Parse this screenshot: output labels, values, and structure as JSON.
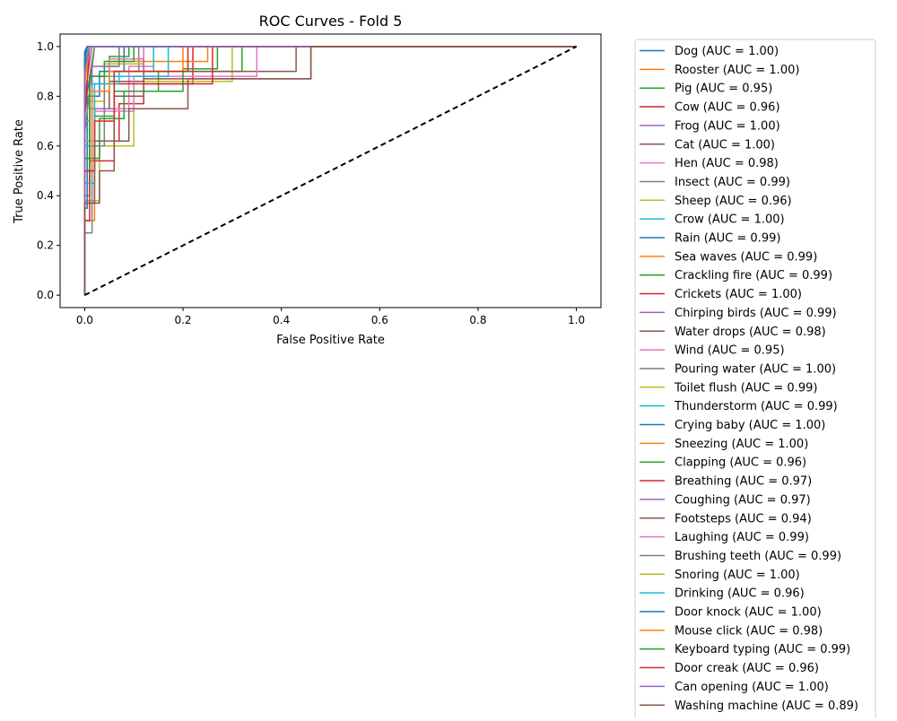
{
  "chart_data": {
    "type": "line",
    "title": "ROC Curves - Fold 5",
    "xlabel": "False Positive Rate",
    "ylabel": "True Positive Rate",
    "xlim": [
      -0.05,
      1.05
    ],
    "ylim": [
      -0.05,
      1.05
    ],
    "xticks": [
      "0.0",
      "0.2",
      "0.4",
      "0.6",
      "0.8",
      "1.0"
    ],
    "yticks": [
      "0.0",
      "0.2",
      "0.4",
      "0.6",
      "0.8",
      "1.0"
    ],
    "grid": false,
    "legend_position": "outside-right",
    "baseline": {
      "x": [
        0,
        1
      ],
      "y": [
        0,
        1
      ],
      "color": "#000000",
      "style": "dashed"
    },
    "palette": [
      "#1f77b4",
      "#ff7f0e",
      "#2ca02c",
      "#d62728",
      "#9467bd",
      "#8c564b",
      "#e377c2",
      "#7f7f7f",
      "#bcbd22",
      "#17becf"
    ],
    "series": [
      {
        "name": "Dog (AUC = 1.00)",
        "x": [
          0,
          0,
          0.005,
          1
        ],
        "y": [
          0,
          0.9,
          1,
          1
        ]
      },
      {
        "name": "Rooster (AUC = 1.00)",
        "x": [
          0,
          0,
          0.01,
          1
        ],
        "y": [
          0,
          0.85,
          1,
          1
        ]
      },
      {
        "name": "Pig (AUC = 0.95)",
        "x": [
          0,
          0,
          0.02,
          0.02,
          0.06,
          0.06,
          0.15,
          0.15,
          0.32,
          0.32,
          1
        ],
        "y": [
          0,
          0.55,
          0.55,
          0.72,
          0.72,
          0.82,
          0.82,
          0.9,
          0.9,
          1,
          1
        ]
      },
      {
        "name": "Cow (AUC = 0.96)",
        "x": [
          0,
          0,
          0.03,
          0.03,
          0.07,
          0.07,
          0.12,
          0.12,
          0.22,
          0.22,
          1
        ],
        "y": [
          0,
          0.55,
          0.55,
          0.62,
          0.62,
          0.77,
          0.77,
          0.85,
          0.85,
          1,
          1
        ]
      },
      {
        "name": "Frog (AUC = 1.00)",
        "x": [
          0,
          0,
          0.015,
          1
        ],
        "y": [
          0,
          0.8,
          1,
          1
        ]
      },
      {
        "name": "Cat (AUC = 1.00)",
        "x": [
          0,
          0,
          0.02,
          1
        ],
        "y": [
          0,
          0.75,
          1,
          1
        ]
      },
      {
        "name": "Hen (AUC = 0.98)",
        "x": [
          0,
          0,
          0.02,
          0.02,
          0.09,
          0.09,
          0.14,
          0.14,
          1
        ],
        "y": [
          0,
          0.6,
          0.6,
          0.75,
          0.75,
          0.92,
          0.92,
          1,
          1
        ]
      },
      {
        "name": "Insect (AUC = 0.99)",
        "x": [
          0,
          0,
          0.01,
          0.01,
          0.04,
          0.04,
          0.11,
          0.11,
          1
        ],
        "y": [
          0,
          0.4,
          0.4,
          0.75,
          0.75,
          0.9,
          0.9,
          1,
          1
        ]
      },
      {
        "name": "Sheep (AUC = 0.96)",
        "x": [
          0,
          0,
          0.03,
          0.03,
          0.1,
          0.1,
          0.3,
          0.3,
          1
        ],
        "y": [
          0,
          0.38,
          0.38,
          0.6,
          0.6,
          0.86,
          0.86,
          1,
          1
        ]
      },
      {
        "name": "Crow (AUC = 1.00)",
        "x": [
          0,
          0,
          0.01,
          1
        ],
        "y": [
          0,
          0.95,
          1,
          1
        ]
      },
      {
        "name": "Rain (AUC = 0.99)",
        "x": [
          0,
          0,
          0.005,
          0.005,
          0.03,
          0.03,
          0.08,
          0.08,
          1
        ],
        "y": [
          0,
          0.35,
          0.35,
          0.8,
          0.8,
          0.9,
          0.9,
          1,
          1
        ]
      },
      {
        "name": "Sea waves (AUC = 0.99)",
        "x": [
          0,
          0,
          0.02,
          0.02,
          0.05,
          0.05,
          0.25,
          0.25,
          1
        ],
        "y": [
          0,
          0.3,
          0.3,
          0.82,
          0.82,
          0.94,
          0.94,
          1,
          1
        ]
      },
      {
        "name": "Crackling fire (AUC = 0.99)",
        "x": [
          0,
          0,
          0.01,
          0.01,
          0.05,
          0.05,
          0.09,
          0.09,
          1
        ],
        "y": [
          0,
          0.45,
          0.45,
          0.88,
          0.88,
          0.96,
          0.96,
          1,
          1
        ]
      },
      {
        "name": "Crickets (AUC = 1.00)",
        "x": [
          0,
          0,
          0.01,
          1
        ],
        "y": [
          0,
          0.7,
          1,
          1
        ]
      },
      {
        "name": "Chirping birds (AUC = 0.99)",
        "x": [
          0,
          0,
          0.015,
          0.015,
          0.07,
          0.07,
          1
        ],
        "y": [
          0,
          0.55,
          0.55,
          0.92,
          0.92,
          1,
          1
        ]
      },
      {
        "name": "Water drops (AUC = 0.98)",
        "x": [
          0,
          0,
          0.02,
          0.02,
          0.05,
          0.05,
          0.12,
          0.12,
          0.43,
          0.43,
          1
        ],
        "y": [
          0,
          0.5,
          0.5,
          0.75,
          0.75,
          0.86,
          0.86,
          0.9,
          0.9,
          1,
          1
        ]
      },
      {
        "name": "Wind (AUC = 0.95)",
        "x": [
          0,
          0,
          0.02,
          0.02,
          0.1,
          0.1,
          0.35,
          0.35,
          1
        ],
        "y": [
          0,
          0.62,
          0.62,
          0.74,
          0.74,
          0.88,
          0.88,
          1,
          1
        ]
      },
      {
        "name": "Pouring water (AUC = 1.00)",
        "x": [
          0,
          0,
          0.02,
          1
        ],
        "y": [
          0,
          0.65,
          1,
          1
        ]
      },
      {
        "name": "Toilet flush (AUC = 0.99)",
        "x": [
          0,
          0,
          0.01,
          0.01,
          0.04,
          0.04,
          0.12,
          0.12,
          1
        ],
        "y": [
          0,
          0.5,
          0.5,
          0.78,
          0.78,
          0.93,
          0.93,
          1,
          1
        ]
      },
      {
        "name": "Thunderstorm (AUC = 0.99)",
        "x": [
          0,
          0,
          0.01,
          0.01,
          0.05,
          0.05,
          0.17,
          0.17,
          1
        ],
        "y": [
          0,
          0.6,
          0.6,
          0.85,
          0.85,
          0.88,
          0.88,
          1,
          1
        ]
      },
      {
        "name": "Crying baby (AUC = 1.00)",
        "x": [
          0,
          0,
          0.005,
          1
        ],
        "y": [
          0,
          0.98,
          1,
          1
        ]
      },
      {
        "name": "Sneezing (AUC = 1.00)",
        "x": [
          0,
          0,
          0.01,
          1
        ],
        "y": [
          0,
          0.85,
          1,
          1
        ]
      },
      {
        "name": "Clapping (AUC = 0.96)",
        "x": [
          0,
          0,
          0.03,
          0.03,
          0.08,
          0.08,
          0.2,
          0.2,
          0.27,
          0.27,
          1
        ],
        "y": [
          0,
          0.55,
          0.55,
          0.71,
          0.71,
          0.82,
          0.82,
          0.91,
          0.91,
          1,
          1
        ]
      },
      {
        "name": "Breathing (AUC = 0.97)",
        "x": [
          0,
          0,
          0.01,
          0.01,
          0.06,
          0.06,
          0.26,
          0.26,
          1
        ],
        "y": [
          0,
          0.3,
          0.3,
          0.54,
          0.54,
          0.85,
          0.85,
          1,
          1
        ]
      },
      {
        "name": "Coughing (AUC = 0.97)",
        "x": [
          0,
          0,
          0.02,
          0.02,
          0.06,
          0.06,
          0.12,
          0.12,
          1
        ],
        "y": [
          0,
          0.5,
          0.5,
          0.75,
          0.75,
          0.9,
          0.9,
          1,
          1
        ]
      },
      {
        "name": "Footsteps (AUC = 0.94)",
        "x": [
          0,
          0,
          0.03,
          0.03,
          0.06,
          0.06,
          0.12,
          0.12,
          0.46,
          0.46,
          1
        ],
        "y": [
          0,
          0.37,
          0.37,
          0.5,
          0.5,
          0.8,
          0.8,
          0.87,
          0.87,
          1,
          1
        ]
      },
      {
        "name": "Laughing (AUC = 0.99)",
        "x": [
          0,
          0,
          0.01,
          0.01,
          0.05,
          0.05,
          0.12,
          0.12,
          1
        ],
        "y": [
          0,
          0.7,
          0.7,
          0.82,
          0.82,
          0.95,
          0.95,
          1,
          1
        ]
      },
      {
        "name": "Brushing teeth (AUC = 0.99)",
        "x": [
          0,
          0,
          0.015,
          0.015,
          0.04,
          0.04,
          0.07,
          0.07,
          1
        ],
        "y": [
          0,
          0.25,
          0.25,
          0.6,
          0.6,
          0.92,
          0.92,
          1,
          1
        ]
      },
      {
        "name": "Snoring (AUC = 1.00)",
        "x": [
          0,
          0,
          0.01,
          1
        ],
        "y": [
          0,
          0.9,
          1,
          1
        ]
      },
      {
        "name": "Drinking (AUC = 0.96)",
        "x": [
          0,
          0,
          0.02,
          0.02,
          0.07,
          0.07,
          0.14,
          0.14,
          1
        ],
        "y": [
          0,
          0.45,
          0.45,
          0.85,
          0.85,
          0.9,
          0.9,
          1,
          1
        ]
      },
      {
        "name": "Door knock (AUC = 1.00)",
        "x": [
          0,
          0,
          0.005,
          1
        ],
        "y": [
          0,
          0.95,
          1,
          1
        ]
      },
      {
        "name": "Mouse click (AUC = 0.98)",
        "x": [
          0,
          0,
          0.015,
          0.015,
          0.05,
          0.05,
          0.2,
          0.2,
          1
        ],
        "y": [
          0,
          0.5,
          0.5,
          0.82,
          0.82,
          0.9,
          0.9,
          1,
          1
        ]
      },
      {
        "name": "Keyboard typing (AUC = 0.99)",
        "x": [
          0,
          0,
          0.01,
          0.01,
          0.04,
          0.04,
          0.1,
          0.1,
          1
        ],
        "y": [
          0,
          0.5,
          0.5,
          0.88,
          0.88,
          0.94,
          0.94,
          1,
          1
        ]
      },
      {
        "name": "Door creak (AUC = 0.96)",
        "x": [
          0,
          0,
          0.02,
          0.02,
          0.06,
          0.06,
          0.21,
          0.21,
          1
        ],
        "y": [
          0,
          0.5,
          0.5,
          0.7,
          0.7,
          0.9,
          0.9,
          1,
          1
        ]
      },
      {
        "name": "Can opening (AUC = 1.00)",
        "x": [
          0,
          0,
          0.01,
          1
        ],
        "y": [
          0,
          0.9,
          1,
          1
        ]
      },
      {
        "name": "Washing machine (AUC = 0.89)",
        "x": [
          0,
          0,
          0.02,
          0.02,
          0.09,
          0.09,
          0.21,
          0.21,
          0.46,
          0.46,
          1
        ],
        "y": [
          0,
          0.37,
          0.37,
          0.62,
          0.62,
          0.75,
          0.75,
          0.87,
          0.87,
          1,
          1
        ]
      }
    ]
  }
}
